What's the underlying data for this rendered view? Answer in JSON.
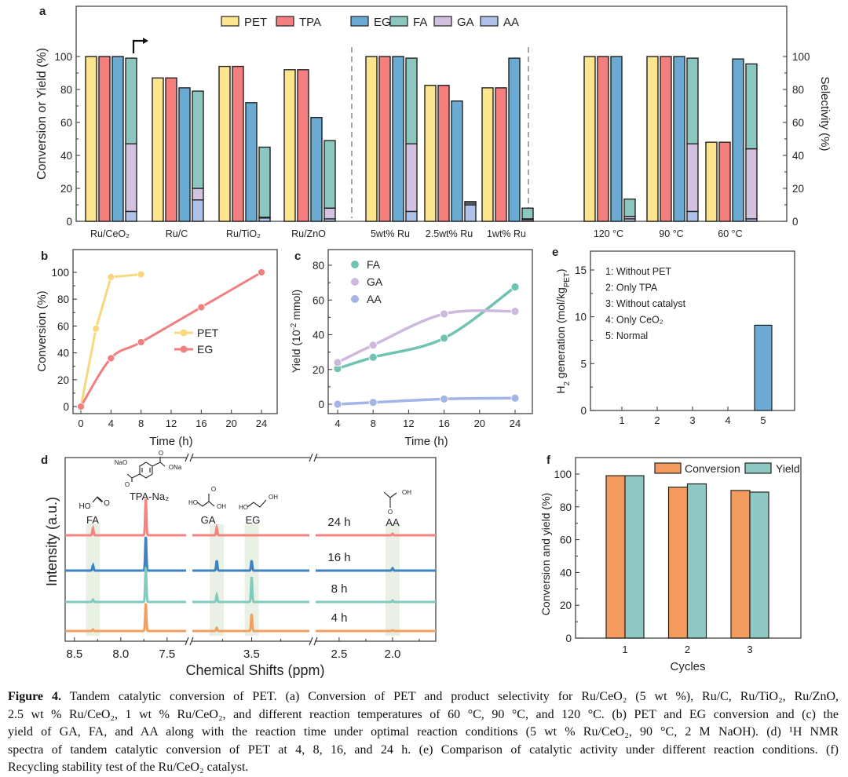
{
  "panel_labels": [
    "a",
    "b",
    "c",
    "d",
    "e",
    "f"
  ],
  "colors": {
    "PET": "#fde48f",
    "TPA": "#f47f7f",
    "EG": "#6aaad3",
    "FA": "#8cc7bf",
    "GA": "#d2c1df",
    "AA": "#afc0e9",
    "b_PET": "#f9d77e",
    "b_EG": "#f07f80",
    "c_FA": "#6fc3b0",
    "c_GA": "#cdb9de",
    "c_AA": "#a2b5e6",
    "d_24h": "#f38482",
    "d_16h": "#3f82c2",
    "d_8h": "#80cbbd",
    "d_4h": "#f2a062",
    "f_conv": "#f39b5f",
    "f_yield": "#8fc7c3",
    "band": "#e7efe2"
  },
  "chart_data": [
    {
      "id": "a",
      "type": "bar",
      "stacked_series": [
        "AA",
        "GA",
        "FA"
      ],
      "categories": [
        "Ru/CeO₂",
        "Ru/C",
        "Ru/TiO₂",
        "Ru/ZnO",
        "5wt% Ru",
        "2.5wt% Ru",
        "1wt% Ru",
        "120 °C",
        "90 °C",
        "60 °C"
      ],
      "group_separators_after": [
        3,
        6
      ],
      "legend": [
        "PET",
        "TPA",
        "EG",
        "FA",
        "GA",
        "AA"
      ],
      "legend_position": "top",
      "series": [
        {
          "name": "PET",
          "values": [
            100,
            87,
            94,
            92,
            100,
            82.5,
            81,
            100,
            100,
            48
          ]
        },
        {
          "name": "TPA",
          "values": [
            100,
            87,
            94,
            92,
            100,
            82.5,
            81,
            100,
            100,
            48
          ]
        },
        {
          "name": "EG",
          "values": [
            100,
            81,
            72,
            63,
            100,
            73,
            99,
            100,
            100,
            98.5
          ]
        },
        {
          "name": "AA",
          "values": [
            6,
            13,
            2,
            1.5,
            6,
            10,
            1,
            1.5,
            6,
            1.5
          ]
        },
        {
          "name": "GA",
          "values": [
            41,
            7,
            0.5,
            6.5,
            41,
            1,
            0.5,
            1.5,
            41,
            42.5
          ]
        },
        {
          "name": "FA",
          "values": [
            52,
            59,
            42.5,
            41,
            52,
            1,
            6.5,
            10.5,
            52,
            51.5
          ]
        }
      ],
      "ylabel": "Conversion or Yield (%)",
      "y2label": "Selectivity (%)",
      "yticks": [
        "0",
        "20",
        "40",
        "60",
        "80",
        "100"
      ],
      "ylim": [
        0,
        130
      ]
    },
    {
      "id": "b",
      "type": "line",
      "series": [
        {
          "name": "PET",
          "x": [
            0,
            2,
            4,
            8
          ],
          "values": [
            0,
            58,
            96.5,
            98.5
          ]
        },
        {
          "name": "EG",
          "x": [
            0,
            4,
            8,
            16,
            24
          ],
          "values": [
            0,
            36,
            48,
            74,
            100
          ]
        }
      ],
      "xlabel": "Time (h)",
      "ylabel": "Conversion (%)",
      "xticks": [
        "0",
        "4",
        "8",
        "12",
        "16",
        "20",
        "24"
      ],
      "yticks": [
        "0",
        "20",
        "40",
        "60",
        "80",
        "100"
      ],
      "xlim": [
        -1,
        25
      ],
      "ylim": [
        -5,
        113
      ],
      "legend_position": "center-right"
    },
    {
      "id": "c",
      "type": "line",
      "series": [
        {
          "name": "FA",
          "x": [
            4,
            8,
            16,
            24
          ],
          "values": [
            20.5,
            27,
            38,
            67.5
          ]
        },
        {
          "name": "GA",
          "x": [
            4,
            8,
            16,
            24
          ],
          "values": [
            24,
            34,
            52,
            53.5
          ]
        },
        {
          "name": "AA",
          "x": [
            4,
            8,
            16,
            24
          ],
          "values": [
            0,
            1,
            3,
            3.5
          ]
        }
      ],
      "xlabel": "Time (h)",
      "ylabel_parts": [
        "Yield (10",
        "-2",
        " mmol)"
      ],
      "xticks": [
        "4",
        "8",
        "12",
        "16",
        "20",
        "24"
      ],
      "yticks": [
        "0",
        "20",
        "40",
        "60",
        "80"
      ],
      "xlim": [
        3,
        25
      ],
      "ylim": [
        -5,
        88
      ],
      "legend_position": "top-left"
    },
    {
      "id": "d",
      "type": "line",
      "title": "1H NMR spectra",
      "xlabel": "Chemical Shifts (ppm)",
      "ylabel": "Intensity (a.u.)",
      "xticks": [
        "8.5",
        "8.0",
        "7.5",
        "3.5",
        "2.5",
        "2.0"
      ],
      "axis_breaks": [
        "7.3–4.0",
        "3.0–2.7"
      ],
      "peak_labels": [
        "FA",
        "TPA-Na₂",
        "GA",
        "EG",
        "AA"
      ],
      "peaks_ppm": [
        8.3,
        7.73,
        3.8,
        3.5,
        2.0
      ],
      "series": [
        {
          "name": "24 h",
          "intensity": [
            9,
            47,
            10,
            0,
            2
          ]
        },
        {
          "name": "16 h",
          "intensity": [
            7,
            44,
            13,
            13,
            3
          ]
        },
        {
          "name": "8 h",
          "intensity": [
            3,
            45,
            9,
            32,
            2
          ]
        },
        {
          "name": "4 h",
          "intensity": [
            2,
            36,
            4,
            22,
            1
          ]
        }
      ],
      "structure_atoms": {
        "FA": [
          "HO",
          "O"
        ],
        "TPA": [
          "NaO",
          "O",
          "O",
          "ONa"
        ],
        "GA": [
          "HO",
          "O",
          "OH"
        ],
        "EG": [
          "HO",
          "OH"
        ],
        "AA": [
          "OH",
          "O"
        ]
      }
    },
    {
      "id": "e",
      "type": "bar",
      "categories": [
        "1",
        "2",
        "3",
        "4",
        "5"
      ],
      "values": [
        0,
        0,
        0,
        0,
        9.1
      ],
      "ylabel_parts": [
        "H",
        "2",
        " generation (mol/kg",
        "PET",
        ")"
      ],
      "yticks": [
        "0",
        "5",
        "10",
        "15"
      ],
      "ylim": [
        0,
        17
      ],
      "annotations": [
        "1: Without PET",
        "2: Only TPA",
        "3: Without catalyst",
        "4: Only CeO₂",
        "5: Normal"
      ]
    },
    {
      "id": "f",
      "type": "bar",
      "categories": [
        "1",
        "2",
        "3"
      ],
      "series": [
        {
          "name": "Conversion",
          "values": [
            99,
            92,
            90
          ]
        },
        {
          "name": "Yield",
          "values": [
            99,
            94,
            89
          ]
        }
      ],
      "xlabel": "Cycles",
      "ylabel": "Conversion and yield (%)",
      "yticks": [
        "0",
        "20",
        "40",
        "60",
        "80",
        "100"
      ],
      "ylim": [
        0,
        110
      ],
      "legend_position": "top-right"
    }
  ],
  "caption": {
    "lead": "Figure 4.",
    "lines": [
      " Tandem catalytic conversion of PET. (a) Conversion of PET and product selectivity for Ru/CeO₂ (5 wt %), Ru/C, Ru/TiO₂, Ru/ZnO,",
      "2.5 wt % Ru/CeO₂, 1 wt % Ru/CeO₂, and different reaction temperatures of 60 °C, 90 °C, and 120 °C. (b) PET and EG conversion and (c) the",
      "yield of GA, FA, and AA along with the reaction time under optimal reaction conditions (5 wt % Ru/CeO₂, 90 °C, 2 M NaOH). (d) ¹H NMR",
      "spectra of tandem catalytic conversion of PET at 4, 8, 16, and 24 h. (e) Comparison of catalytic activity under different reaction conditions. (f)",
      "Recycling stability test of the Ru/CeO₂ catalyst."
    ]
  }
}
